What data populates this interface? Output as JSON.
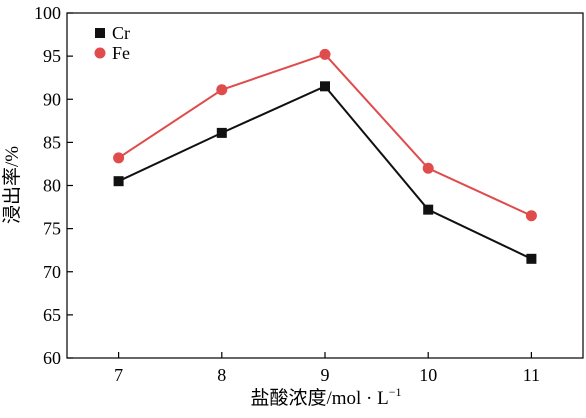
{
  "chart_data": {
    "type": "line",
    "x": [
      7,
      8,
      9,
      10,
      11
    ],
    "series": [
      {
        "name": "Cr",
        "values": [
          80.5,
          86.1,
          91.5,
          77.2,
          71.5
        ],
        "color": "#111111",
        "marker": "square"
      },
      {
        "name": "Fe",
        "values": [
          83.2,
          91.1,
          95.2,
          82.0,
          76.5
        ],
        "color": "#e04b4b",
        "marker": "circle"
      }
    ],
    "title": "",
    "xlabel_main": "盐酸浓度/mol · L",
    "xlabel_sup": "−1",
    "ylabel": "浸出率/%",
    "xlim": [
      6.5,
      11.5
    ],
    "ylim": [
      60,
      100
    ],
    "xticks": [
      "7",
      "8",
      "9",
      "10",
      "11"
    ],
    "yticks": [
      "60",
      "65",
      "70",
      "75",
      "80",
      "85",
      "90",
      "95",
      "100"
    ],
    "grid": false,
    "legend_position": "top-left"
  }
}
